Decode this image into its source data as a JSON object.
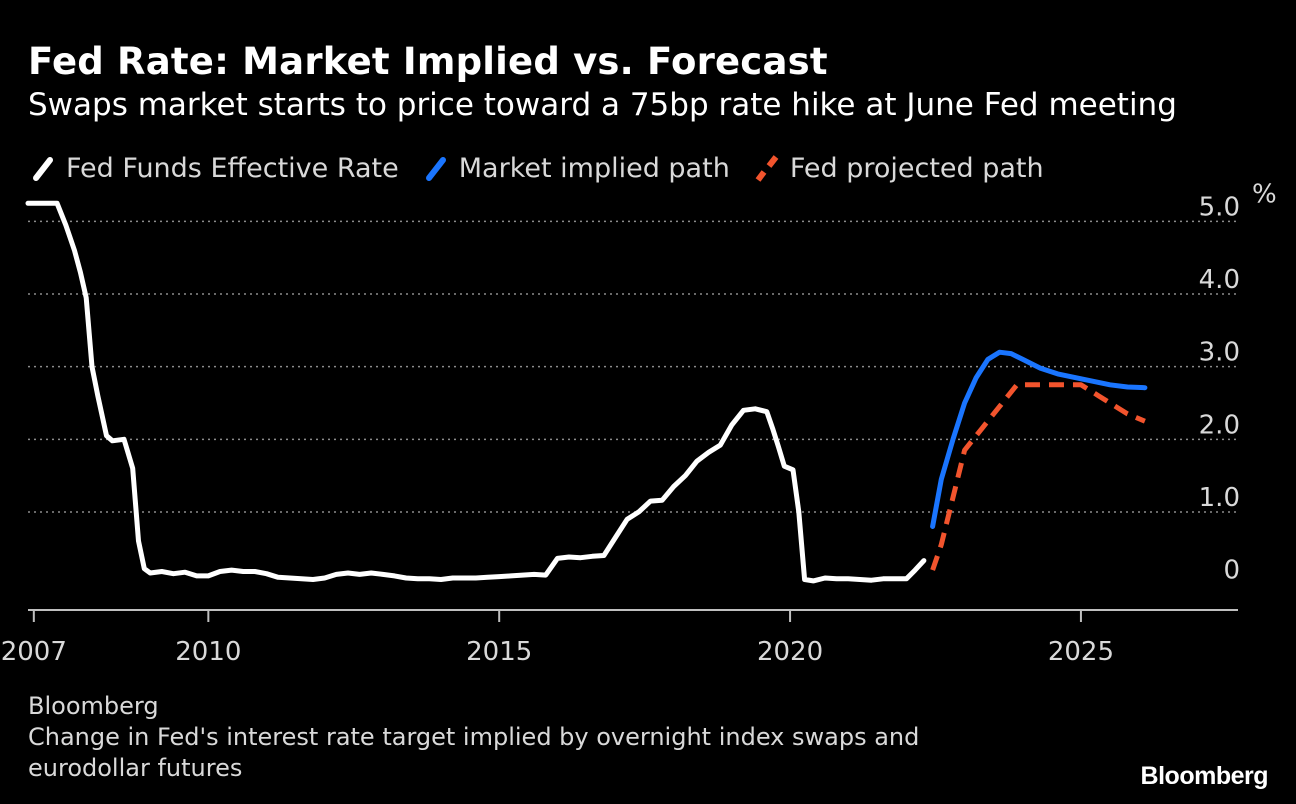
{
  "header": {
    "title": "Fed Rate: Market Implied vs. Forecast",
    "subtitle": "Swaps market starts to price toward a 75bp rate hike at June Fed meeting"
  },
  "legend": [
    {
      "label": "Fed Funds Effective Rate",
      "color": "#ffffff",
      "dashed": false
    },
    {
      "label": "Market implied path",
      "color": "#1a75ff",
      "dashed": false
    },
    {
      "label": "Fed projected path",
      "color": "#f2542d",
      "dashed": true
    }
  ],
  "chart_data": {
    "type": "line",
    "title": "Fed Rate: Market Implied vs. Forecast",
    "xlim": [
      2006.9,
      2027.7
    ],
    "ylim": [
      -0.35,
      5.35
    ],
    "y_unit": "%",
    "x_ticks": [
      {
        "value": 2007,
        "label": "2007"
      },
      {
        "value": 2010,
        "label": "2010"
      },
      {
        "value": 2015,
        "label": "2015"
      },
      {
        "value": 2020,
        "label": "2020"
      },
      {
        "value": 2025,
        "label": "2025"
      }
    ],
    "y_ticks": [
      {
        "value": 0,
        "label": "0"
      },
      {
        "value": 1.0,
        "label": "1.0"
      },
      {
        "value": 2.0,
        "label": "2.0"
      },
      {
        "value": 3.0,
        "label": "3.0"
      },
      {
        "value": 4.0,
        "label": "4.0"
      },
      {
        "value": 5.0,
        "label": "5.0"
      }
    ],
    "grid": "horizontal-dotted",
    "series": [
      {
        "name": "Fed Funds Effective Rate",
        "color": "#ffffff",
        "dashed": false,
        "points": [
          [
            2006.9,
            5.25
          ],
          [
            2007.4,
            5.25
          ],
          [
            2007.55,
            4.95
          ],
          [
            2007.7,
            4.6
          ],
          [
            2007.8,
            4.3
          ],
          [
            2007.9,
            3.95
          ],
          [
            2008.0,
            3.0
          ],
          [
            2008.1,
            2.6
          ],
          [
            2008.25,
            2.05
          ],
          [
            2008.35,
            1.98
          ],
          [
            2008.55,
            2.0
          ],
          [
            2008.7,
            1.6
          ],
          [
            2008.8,
            0.6
          ],
          [
            2008.9,
            0.22
          ],
          [
            2009.0,
            0.16
          ],
          [
            2009.2,
            0.18
          ],
          [
            2009.4,
            0.15
          ],
          [
            2009.6,
            0.17
          ],
          [
            2009.8,
            0.12
          ],
          [
            2010.0,
            0.12
          ],
          [
            2010.2,
            0.18
          ],
          [
            2010.4,
            0.2
          ],
          [
            2010.6,
            0.18
          ],
          [
            2010.8,
            0.18
          ],
          [
            2011.0,
            0.15
          ],
          [
            2011.2,
            0.1
          ],
          [
            2011.4,
            0.09
          ],
          [
            2011.6,
            0.08
          ],
          [
            2011.8,
            0.07
          ],
          [
            2012.0,
            0.09
          ],
          [
            2012.2,
            0.14
          ],
          [
            2012.4,
            0.16
          ],
          [
            2012.6,
            0.14
          ],
          [
            2012.8,
            0.16
          ],
          [
            2013.0,
            0.14
          ],
          [
            2013.2,
            0.12
          ],
          [
            2013.4,
            0.09
          ],
          [
            2013.6,
            0.08
          ],
          [
            2013.8,
            0.08
          ],
          [
            2014.0,
            0.07
          ],
          [
            2014.2,
            0.09
          ],
          [
            2014.4,
            0.09
          ],
          [
            2014.6,
            0.09
          ],
          [
            2014.8,
            0.1
          ],
          [
            2015.0,
            0.11
          ],
          [
            2015.2,
            0.12
          ],
          [
            2015.4,
            0.13
          ],
          [
            2015.6,
            0.14
          ],
          [
            2015.8,
            0.13
          ],
          [
            2016.0,
            0.36
          ],
          [
            2016.2,
            0.38
          ],
          [
            2016.4,
            0.37
          ],
          [
            2016.6,
            0.39
          ],
          [
            2016.8,
            0.4
          ],
          [
            2017.0,
            0.65
          ],
          [
            2017.2,
            0.9
          ],
          [
            2017.4,
            1.0
          ],
          [
            2017.6,
            1.15
          ],
          [
            2017.8,
            1.16
          ],
          [
            2018.0,
            1.35
          ],
          [
            2018.2,
            1.5
          ],
          [
            2018.4,
            1.7
          ],
          [
            2018.6,
            1.82
          ],
          [
            2018.8,
            1.92
          ],
          [
            2019.0,
            2.2
          ],
          [
            2019.2,
            2.4
          ],
          [
            2019.4,
            2.42
          ],
          [
            2019.6,
            2.38
          ],
          [
            2019.7,
            2.15
          ],
          [
            2019.8,
            1.9
          ],
          [
            2019.9,
            1.63
          ],
          [
            2020.05,
            1.58
          ],
          [
            2020.15,
            1.0
          ],
          [
            2020.25,
            0.07
          ],
          [
            2020.4,
            0.05
          ],
          [
            2020.6,
            0.09
          ],
          [
            2020.8,
            0.08
          ],
          [
            2021.0,
            0.08
          ],
          [
            2021.2,
            0.07
          ],
          [
            2021.4,
            0.06
          ],
          [
            2021.6,
            0.08
          ],
          [
            2021.8,
            0.08
          ],
          [
            2022.0,
            0.08
          ],
          [
            2022.15,
            0.2
          ],
          [
            2022.3,
            0.33
          ]
        ]
      },
      {
        "name": "Market implied path",
        "color": "#1a75ff",
        "dashed": false,
        "points": [
          [
            2022.45,
            0.8
          ],
          [
            2022.6,
            1.45
          ],
          [
            2022.8,
            2.0
          ],
          [
            2023.0,
            2.5
          ],
          [
            2023.2,
            2.85
          ],
          [
            2023.4,
            3.1
          ],
          [
            2023.6,
            3.2
          ],
          [
            2023.8,
            3.18
          ],
          [
            2024.0,
            3.1
          ],
          [
            2024.3,
            2.98
          ],
          [
            2024.6,
            2.9
          ],
          [
            2024.9,
            2.85
          ],
          [
            2025.2,
            2.8
          ],
          [
            2025.5,
            2.75
          ],
          [
            2025.8,
            2.72
          ],
          [
            2026.1,
            2.71
          ]
        ]
      },
      {
        "name": "Fed projected path",
        "color": "#f2542d",
        "dashed": true,
        "points": [
          [
            2022.45,
            0.2
          ],
          [
            2022.6,
            0.55
          ],
          [
            2022.8,
            1.2
          ],
          [
            2023.0,
            1.85
          ],
          [
            2023.3,
            2.15
          ],
          [
            2023.6,
            2.45
          ],
          [
            2023.9,
            2.75
          ],
          [
            2024.2,
            2.75
          ],
          [
            2024.5,
            2.75
          ],
          [
            2024.8,
            2.75
          ],
          [
            2025.0,
            2.75
          ],
          [
            2025.3,
            2.6
          ],
          [
            2025.6,
            2.45
          ],
          [
            2025.8,
            2.35
          ],
          [
            2026.1,
            2.25
          ]
        ]
      }
    ]
  },
  "footer": {
    "source": "Bloomberg",
    "note": "Change in Fed's interest rate target implied by overnight index swaps and eurodollar futures",
    "brand": "Bloomberg"
  }
}
